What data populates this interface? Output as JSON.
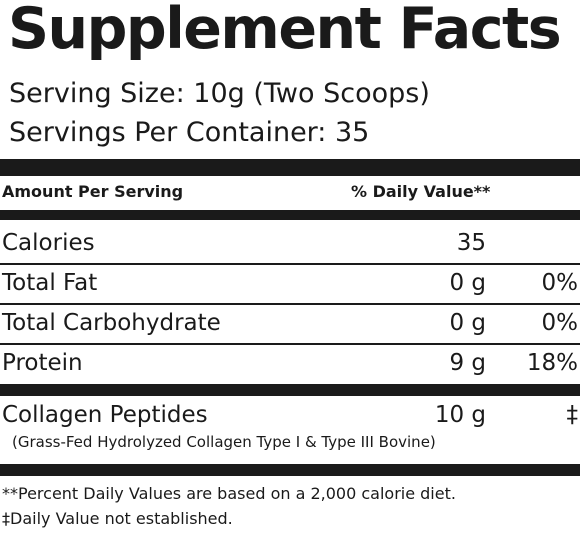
{
  "title": "Supplement Facts",
  "serving_size": "Serving Size: 10g (Two Scoops)",
  "servings_per_container": "Servings Per Container: 35",
  "header": {
    "amount": "Amount Per Serving",
    "daily_value": "% Daily Value**"
  },
  "rows": [
    {
      "name": "Calories",
      "amount": "35",
      "dv": ""
    },
    {
      "name": "Total Fat",
      "amount": "0 g",
      "dv": "0%"
    },
    {
      "name": "Total Carbohydrate",
      "amount": "0 g",
      "dv": "0%"
    },
    {
      "name": "Protein",
      "amount": "9 g",
      "dv": "18%"
    }
  ],
  "collagen": {
    "name": "Collagen Peptides",
    "amount": "10 g",
    "dv": "‡",
    "description": "(Grass-Fed Hydrolyzed Collagen Type I & Type III Bovine)"
  },
  "footnotes": [
    "**Percent Daily Values are based on a 2,000 calorie diet.",
    "‡Daily Value not established."
  ]
}
